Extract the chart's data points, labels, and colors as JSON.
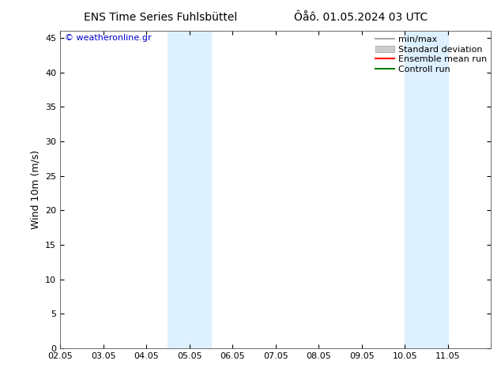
{
  "title_left": "ENS Time Series Fuhlsbüttel",
  "title_right": "Ôåô. 01.05.2024 03 UTC",
  "ylabel": "Wind 10m (m/s)",
  "watermark": "© weatheronline.gr",
  "watermark_color": "#0000cc",
  "xlim": [
    0,
    10
  ],
  "ylim": [
    0,
    46
  ],
  "yticks": [
    0,
    5,
    10,
    15,
    20,
    25,
    30,
    35,
    40,
    45
  ],
  "xtick_labels": [
    "02.05",
    "03.05",
    "04.05",
    "05.05",
    "06.05",
    "07.05",
    "08.05",
    "09.05",
    "10.05",
    "11.05"
  ],
  "xtick_positions": [
    0,
    1,
    2,
    3,
    4,
    5,
    6,
    7,
    8,
    9
  ],
  "shaded_bands": [
    {
      "xmin": 2.5,
      "xmax": 3.5,
      "color": "#ddf0ff"
    },
    {
      "xmin": 8.0,
      "xmax": 9.0,
      "color": "#ddf0ff"
    }
  ],
  "legend_entries": [
    {
      "label": "min/max",
      "color": "#aaaaaa",
      "type": "line"
    },
    {
      "label": "Standard deviation",
      "color": "#cccccc",
      "type": "box"
    },
    {
      "label": "Ensemble mean run",
      "color": "#ff0000",
      "type": "line"
    },
    {
      "label": "Controll run",
      "color": "#008000",
      "type": "line"
    }
  ],
  "background_color": "#ffffff",
  "title_fontsize": 10,
  "tick_fontsize": 8,
  "legend_fontsize": 8,
  "ylabel_fontsize": 9
}
